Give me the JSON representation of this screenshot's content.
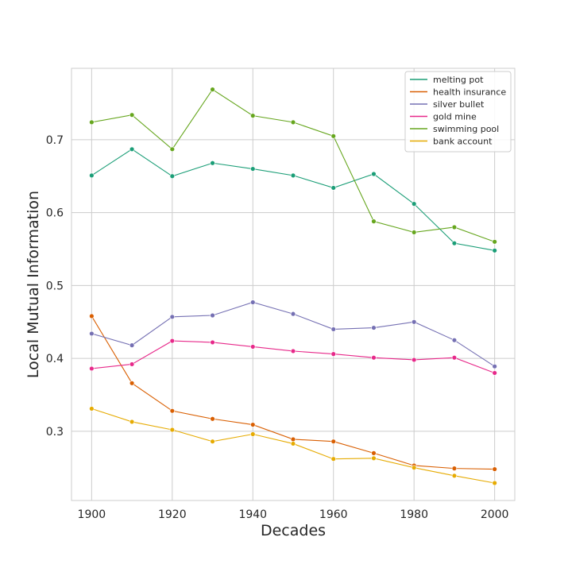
{
  "chart_data": {
    "type": "line",
    "xlabel": "Decades",
    "ylabel": "Local Mutual Information",
    "x": [
      1900,
      1910,
      1920,
      1930,
      1940,
      1950,
      1960,
      1970,
      1980,
      1990,
      2000
    ],
    "xlim": [
      1895,
      2005
    ],
    "ylim": [
      0.205,
      0.798
    ],
    "x_ticks": [
      1900,
      1920,
      1940,
      1960,
      1980,
      2000
    ],
    "y_ticks": [
      0.3,
      0.4,
      0.5,
      0.6,
      0.7
    ],
    "y_tick_labels": [
      "0.3",
      "0.4",
      "0.5",
      "0.6",
      "0.7"
    ],
    "grid": true,
    "legend_position": "top-right",
    "series": [
      {
        "name": "melting pot",
        "color": "#1b9e77",
        "values": [
          0.651,
          0.687,
          0.65,
          0.668,
          0.66,
          0.651,
          0.634,
          0.653,
          0.612,
          0.558,
          0.548
        ]
      },
      {
        "name": "health insurance",
        "color": "#d95f02",
        "values": [
          0.458,
          0.366,
          0.328,
          0.317,
          0.309,
          0.289,
          0.286,
          0.27,
          0.253,
          0.249,
          0.248
        ]
      },
      {
        "name": "silver bullet",
        "color": "#7570b3",
        "values": [
          0.434,
          0.418,
          0.457,
          0.459,
          0.477,
          0.461,
          0.44,
          0.442,
          0.45,
          0.425,
          0.389
        ]
      },
      {
        "name": "gold mine",
        "color": "#e7298a",
        "values": [
          0.386,
          0.392,
          0.424,
          0.422,
          0.416,
          0.41,
          0.406,
          0.401,
          0.398,
          0.401,
          0.38
        ]
      },
      {
        "name": "swimming pool",
        "color": "#66a61e",
        "values": [
          0.724,
          0.734,
          0.687,
          0.769,
          0.733,
          0.724,
          0.705,
          0.588,
          0.573,
          0.58,
          0.56
        ]
      },
      {
        "name": "bank account",
        "color": "#e6ab02",
        "values": [
          0.331,
          0.313,
          0.302,
          0.286,
          0.296,
          0.283,
          0.262,
          0.263,
          0.25,
          0.239,
          0.229
        ]
      }
    ]
  }
}
